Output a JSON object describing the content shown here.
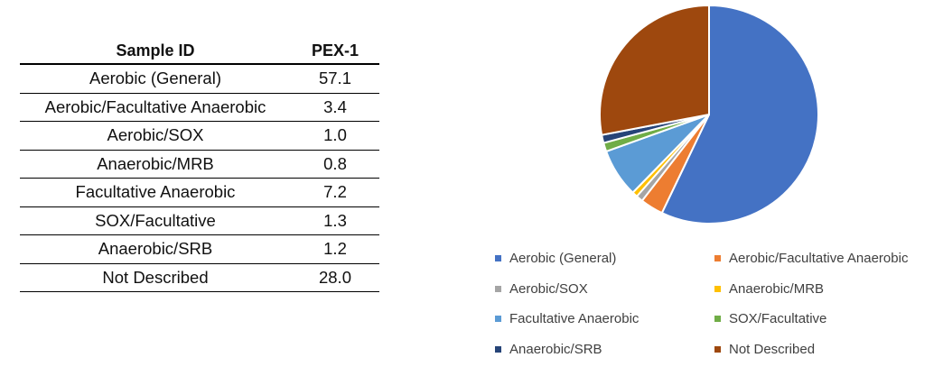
{
  "table": {
    "header": {
      "label": "Sample ID",
      "value": "PEX-1"
    },
    "rows": [
      {
        "label": "Aerobic (General)",
        "value": "57.1"
      },
      {
        "label": "Aerobic/Facultative Anaerobic",
        "value": "3.4"
      },
      {
        "label": "Aerobic/SOX",
        "value": "1.0"
      },
      {
        "label": "Anaerobic/MRB",
        "value": "0.8"
      },
      {
        "label": "Facultative Anaerobic",
        "value": "7.2"
      },
      {
        "label": "SOX/Facultative",
        "value": "1.3"
      },
      {
        "label": "Anaerobic/SRB",
        "value": "1.2"
      },
      {
        "label": "Not Described",
        "value": "28.0"
      }
    ]
  },
  "chart_data": {
    "type": "pie",
    "title": "",
    "categories": [
      "Aerobic (General)",
      "Aerobic/Facultative Anaerobic",
      "Aerobic/SOX",
      "Anaerobic/MRB",
      "Facultative Anaerobic",
      "SOX/Facultative",
      "Anaerobic/SRB",
      "Not Described"
    ],
    "values": [
      57.1,
      3.4,
      1.0,
      0.8,
      7.2,
      1.3,
      1.2,
      28.0
    ],
    "colors": [
      "#4472C4",
      "#ED7D31",
      "#A5A5A5",
      "#FFC000",
      "#5B9BD5",
      "#70AD47",
      "#264478",
      "#9E480E"
    ],
    "start_angle_deg": 0,
    "direction": "clockwise",
    "legend_position": "bottom"
  }
}
